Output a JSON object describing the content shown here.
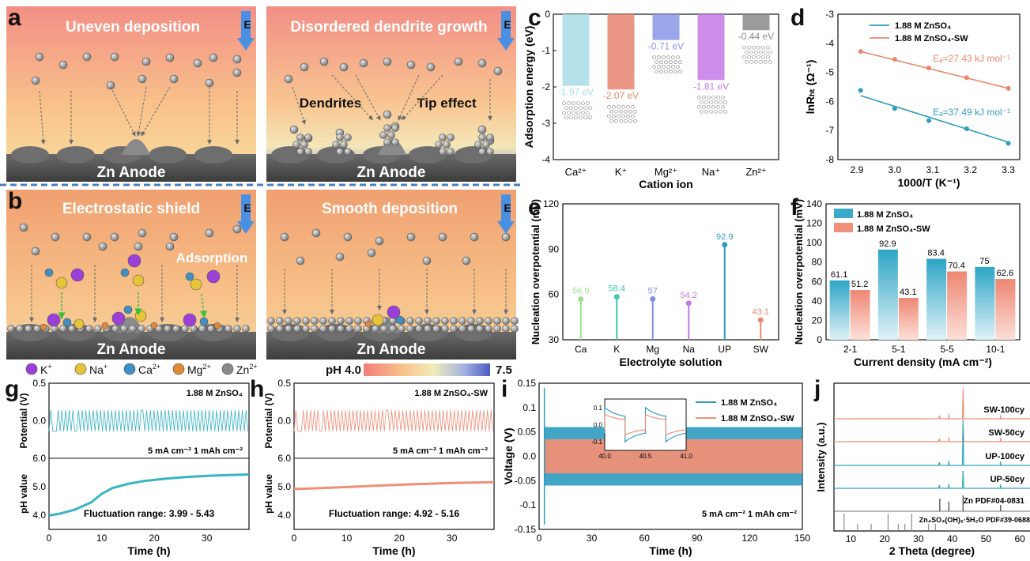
{
  "panels": {
    "a": {
      "letter": "a",
      "left_title": "Uneven deposition",
      "right_title": "Disordered dendrite growth",
      "dendrites": "Dendrites",
      "tip": "Tip effect",
      "anode": "Zn Anode",
      "field": "E"
    },
    "b": {
      "letter": "b",
      "left_title": "Electrostatic shield",
      "right_title": "Smooth deposition",
      "adsorption": "Adsorption",
      "anode": "Zn Anode",
      "field": "E"
    },
    "legend_ions": [
      {
        "sym": "K",
        "sup": "+",
        "color": "#9b3fd6"
      },
      {
        "sym": "Na",
        "sup": "+",
        "color": "#e6c43a"
      },
      {
        "sym": "Ca",
        "sup": "2+",
        "color": "#3f8fc4"
      },
      {
        "sym": "Mg",
        "sup": "2+",
        "color": "#e0893a"
      },
      {
        "sym": "Zn",
        "sup": "2+",
        "color": "#8a8a8a"
      }
    ],
    "ph_bar": {
      "label": "pH 4.0",
      "max": "7.5"
    },
    "g": {
      "letter": "g",
      "legend": "1.88 M ZnSO₄",
      "cond": "5 mA cm⁻²   1 mAh cm⁻²",
      "fluct": "Fluctuation range: 3.99 - 5.43",
      "ylabel_top": "Potential (V)",
      "ylabel_bot": "pH value",
      "xlabel": "Time (h)"
    },
    "h": {
      "letter": "h",
      "legend": "1.88 M ZnSO₄-SW",
      "cond": "5 mA cm⁻²   1 mAh cm⁻²",
      "fluct": "Fluctuation range: 4.92 - 5.16",
      "ylabel_top": "Potential (V)",
      "ylabel_bot": "pH value",
      "xlabel": "Time (h)"
    },
    "i": {
      "letter": "i",
      "cond": "5 mA cm⁻²    1 mAh cm⁻²"
    },
    "j": {
      "letter": "j",
      "labels": [
        "SW-100cy",
        "SW-50cy",
        "UP-100cy",
        "UP-50cy",
        "Zn PDF#04-0831",
        "Zn₄SO₄(OH)₆·5H₂O PDF#39-0688"
      ]
    }
  },
  "chart_data": [
    {
      "panel": "c",
      "type": "bar",
      "xlabel": "Cation ion",
      "ylabel": "Adsorption energy (eV)",
      "categories": [
        "Ca²⁺",
        "K⁺",
        "Mg²⁺",
        "Na⁺",
        "Zn²⁺"
      ],
      "values": [
        -1.97,
        -2.07,
        -0.71,
        -1.81,
        -0.44
      ],
      "value_labels": [
        "-1.97 eV",
        "-2.07 eV",
        "-0.71 eV",
        "-1.81 eV",
        "-0.44 eV"
      ],
      "colors": [
        "#a9dce8",
        "#e8846e",
        "#8a96e6",
        "#c47ae8",
        "#8a8a8a"
      ],
      "ylim": [
        -4,
        0
      ],
      "yticks": [
        0,
        -1,
        -2,
        -3,
        -4
      ]
    },
    {
      "panel": "d",
      "type": "scatter",
      "xlabel": "1000/T (K⁻¹)",
      "ylabel": "lnRₕₜ (Ω⁻¹)",
      "xlim": [
        2.85,
        3.33
      ],
      "ylim": [
        -8,
        -3
      ],
      "xticks": [
        2.9,
        3.0,
        3.1,
        3.2,
        3.3
      ],
      "yticks": [
        -3,
        -4,
        -5,
        -6,
        -7,
        -8
      ],
      "series": [
        {
          "name": "1.88 M ZnSO₄",
          "color": "#2f9bbf",
          "x": [
            2.91,
            3.0,
            3.09,
            3.19,
            3.3
          ],
          "y": [
            -5.62,
            -6.24,
            -6.66,
            -6.94,
            -7.44
          ],
          "fit": [
            [
              2.91,
              -5.8
            ],
            [
              3.3,
              -7.4
            ]
          ],
          "annotation": "Eₐ=37.49 kJ mol⁻¹"
        },
        {
          "name": "1.88 M ZnSO₄-SW",
          "color": "#e8866e",
          "x": [
            2.91,
            3.0,
            3.09,
            3.19,
            3.3
          ],
          "y": [
            -4.28,
            -4.55,
            -4.85,
            -5.18,
            -5.55
          ],
          "fit": [
            [
              2.91,
              -4.28
            ],
            [
              3.3,
              -5.55
            ]
          ],
          "annotation": "Eₐ=27.43 kJ mol⁻¹"
        }
      ]
    },
    {
      "panel": "e",
      "type": "lollipop",
      "xlabel": "Electrolyte solution",
      "ylabel": "Nucleation overpotential (mV)",
      "categories": [
        "Ca",
        "K",
        "Mg",
        "Na",
        "UP",
        "SW"
      ],
      "values": [
        56.9,
        58.4,
        57,
        54.2,
        92.9,
        43.1
      ],
      "value_labels": [
        "56.9",
        "58.4",
        "57",
        "54.2",
        "92.9",
        "43.1"
      ],
      "colors": [
        "#9be08c",
        "#3fc7b0",
        "#7f8ee6",
        "#c07ae0",
        "#2f9bbf",
        "#e88a6e"
      ],
      "ylim": [
        30,
        120
      ],
      "yticks": [
        30,
        60,
        90,
        120
      ]
    },
    {
      "panel": "f",
      "type": "bar",
      "xlabel": "Current density (mA cm⁻²)",
      "ylabel": "Nucleation overpotential (mV)",
      "categories": [
        "2-1",
        "5-1",
        "5-5",
        "10-1"
      ],
      "ylim": [
        0,
        140
      ],
      "yticks": [
        0,
        20,
        40,
        60,
        80,
        100,
        120,
        140
      ],
      "series": [
        {
          "name": "1.88 M ZnSO₄",
          "color": "#39aac9",
          "values": [
            61.1,
            92.9,
            83.4,
            75
          ],
          "value_labels": [
            "61.1",
            "92.9",
            "83.4",
            "75"
          ]
        },
        {
          "name": "1.88 M ZnSO₄-SW",
          "color": "#f08f7a",
          "values": [
            51.2,
            43.1,
            70.4,
            62.6
          ],
          "value_labels": [
            "51.2",
            "43.1",
            "70.4",
            "62.6"
          ]
        }
      ]
    },
    {
      "panel": "g",
      "type": "line",
      "xlim": [
        0,
        38
      ],
      "xticks": [
        0,
        10,
        20,
        30
      ],
      "ylim_top": [
        -0.5,
        0.5
      ],
      "yticks_top": [
        0.0,
        0.5
      ],
      "ylim_bot": [
        3.5,
        6.0
      ],
      "yticks_bot": [
        4.0,
        5.0,
        6.0
      ],
      "color": "#3ab3c4",
      "ph_x": [
        0,
        2,
        5,
        8,
        10,
        12,
        15,
        18,
        22,
        26,
        30,
        34,
        38
      ],
      "ph_y": [
        3.99,
        4.05,
        4.2,
        4.45,
        4.75,
        4.95,
        5.1,
        5.2,
        5.28,
        5.34,
        5.38,
        5.41,
        5.43
      ]
    },
    {
      "panel": "h",
      "type": "line",
      "xlim": [
        0,
        38
      ],
      "xticks": [
        0,
        10,
        20,
        30
      ],
      "ylim_top": [
        -0.5,
        0.5
      ],
      "yticks_top": [
        0.0,
        0.5
      ],
      "ylim_bot": [
        3.5,
        6.0
      ],
      "yticks_bot": [
        4.0,
        5.0,
        6.0
      ],
      "color": "#ef8f78",
      "ph_x": [
        0,
        5,
        10,
        15,
        20,
        25,
        30,
        38
      ],
      "ph_y": [
        4.92,
        4.95,
        4.99,
        5.03,
        5.07,
        5.1,
        5.13,
        5.16
      ]
    },
    {
      "panel": "i",
      "type": "line",
      "xlabel": "Time (h)",
      "ylabel": "Voltage (V)",
      "xlim": [
        0,
        150
      ],
      "xticks": [
        0,
        30,
        60,
        90,
        120,
        150
      ],
      "ylim": [
        -0.15,
        0.15
      ],
      "yticks": [
        0.15,
        0.1,
        0.05,
        0.0,
        -0.05,
        -0.1,
        -0.15
      ],
      "series": [
        {
          "name": "1.88 M ZnSO₄",
          "color": "#2f9bbf",
          "amplitude": 0.06
        },
        {
          "name": "1.88 M ZnSO₄-SW",
          "color": "#ef8f78",
          "amplitude": 0.035
        }
      ],
      "inset": {
        "xlim": [
          40.0,
          41.0
        ],
        "xticks": [
          "40.0",
          "40.5",
          "41.0"
        ],
        "ylim": [
          -0.15,
          0.15
        ],
        "yticks": [
          "0.1",
          "0.0",
          "-0.1"
        ]
      }
    },
    {
      "panel": "j",
      "type": "line",
      "xlabel": "2 Theta (degree)",
      "ylabel": "Intensity (a.u.)",
      "xlim": [
        5,
        63
      ],
      "xticks": [
        10,
        20,
        30,
        40,
        50,
        60
      ]
    }
  ]
}
